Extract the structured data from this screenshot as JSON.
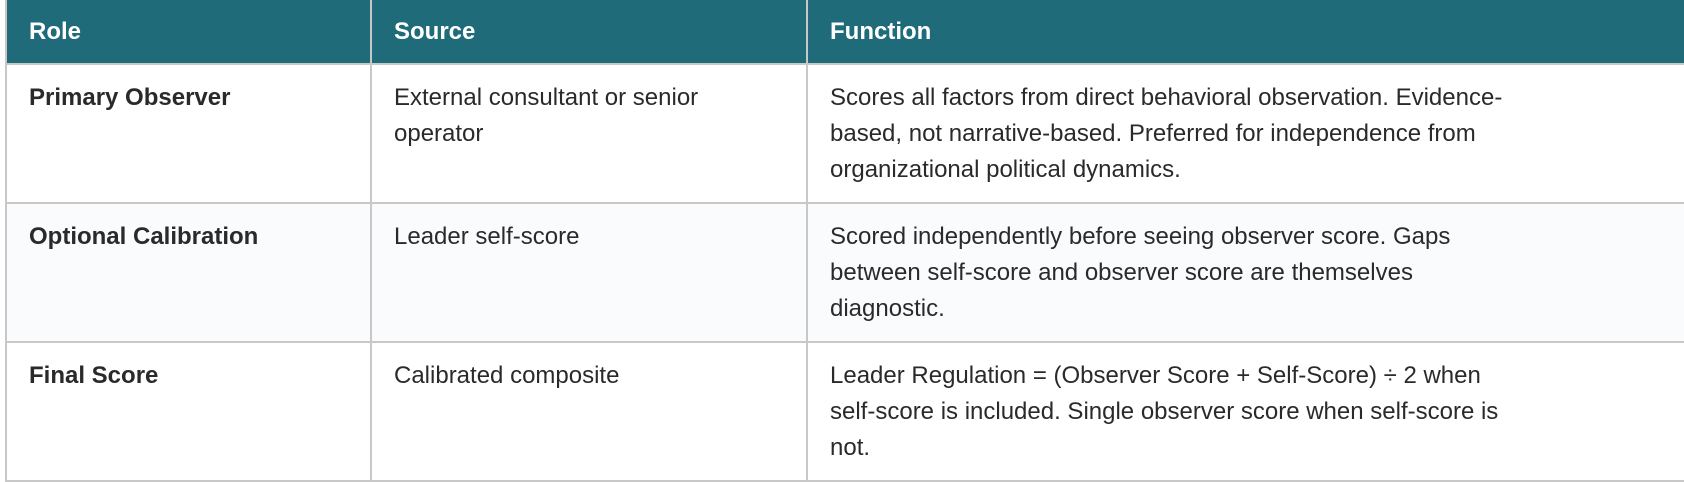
{
  "table": {
    "headers": [
      "Role",
      "Source",
      "Function"
    ],
    "header_color": "#1f6b7a",
    "rows": [
      {
        "role": "Primary Observer",
        "source": "External consultant or senior operator",
        "function": "Scores all factors from direct behavioral observation. Evidence-based, not narrative-based. Preferred for independence from organizational political dynamics."
      },
      {
        "role": "Optional Calibration",
        "source": "Leader self-score",
        "function": "Scored independently before seeing observer score. Gaps between self-score and observer score are themselves diagnostic."
      },
      {
        "role": "Final Score",
        "source": "Calibrated composite",
        "function": "Leader Regulation = (Observer Score + Self-Score) ÷ 2 when self-score is included. Single observer score when self-score is not."
      }
    ]
  }
}
